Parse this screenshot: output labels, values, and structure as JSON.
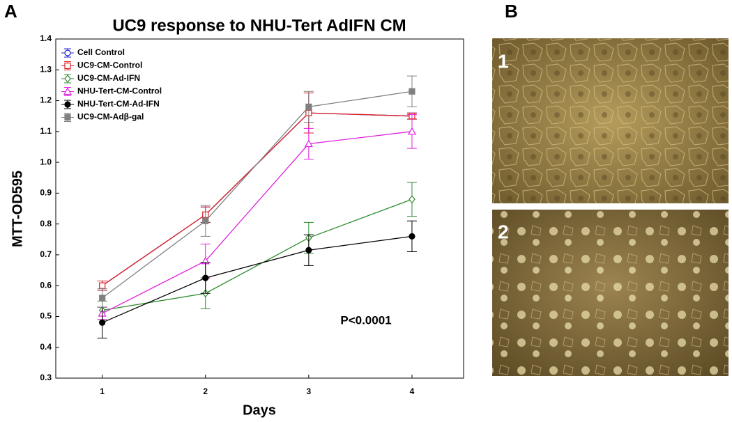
{
  "chart_data": {
    "type": "line",
    "title": "UC9 response to NHU-Tert AdIFN CM",
    "panel_label": "A",
    "x_label": "Days",
    "y_label": "MTT-OD595",
    "annotation": "P<0.0001",
    "x": [
      1,
      2,
      3,
      4
    ],
    "xlim": [
      0.55,
      4.5
    ],
    "xticks": [
      1,
      2,
      3,
      4
    ],
    "ylim": [
      0.3,
      1.4
    ],
    "yticks": [
      0.3,
      0.4,
      0.5,
      0.6,
      0.7,
      0.8,
      0.9,
      {
        "value": 1,
        "label": "1.0"
      },
      1.1,
      1.2,
      1.3,
      1.4
    ],
    "legend": "upper left",
    "series": [
      {
        "name": "Cell Control",
        "color": "#2020d0",
        "marker": "circle",
        "filled": false,
        "values": [
          0.6,
          0.83,
          1.16,
          1.15
        ],
        "errors": [
          0.015,
          0.025,
          0.065,
          0.01
        ]
      },
      {
        "name": "UC9-CM-Control",
        "color": "#e02020",
        "marker": "square",
        "filled": false,
        "values": [
          0.6,
          0.83,
          1.16,
          1.15
        ],
        "errors": [
          0.015,
          0.025,
          0.065,
          0.01
        ]
      },
      {
        "name": "UC9-CM-Ad-IFN",
        "color": "#2e8b2e",
        "marker": "diamond",
        "filled": false,
        "values": [
          0.52,
          0.575,
          0.755,
          0.88
        ],
        "errors": [
          0.03,
          0.05,
          0.05,
          0.055
        ]
      },
      {
        "name": "NHU-Tert-CM-Control",
        "color": "#e020e0",
        "marker": "triangle",
        "filled": false,
        "values": [
          0.51,
          0.68,
          1.06,
          1.1
        ],
        "errors": [
          0.02,
          0.055,
          0.05,
          0.055
        ]
      },
      {
        "name": "NHU-Tert-CM-Ad-IFN",
        "color": "#000000",
        "marker": "circle",
        "filled": true,
        "values": [
          0.48,
          0.625,
          0.715,
          0.76
        ],
        "errors": [
          0.05,
          0.05,
          0.05,
          0.05
        ]
      },
      {
        "name": "UC9-CM-Adβ-gal",
        "color": "#808080",
        "marker": "square",
        "filled": true,
        "values": [
          0.56,
          0.81,
          1.18,
          1.23
        ],
        "errors": [
          0.03,
          0.05,
          0.05,
          0.05
        ]
      }
    ]
  },
  "panel_b": {
    "label": "B",
    "images": [
      {
        "label": "1"
      },
      {
        "label": "2"
      }
    ]
  }
}
